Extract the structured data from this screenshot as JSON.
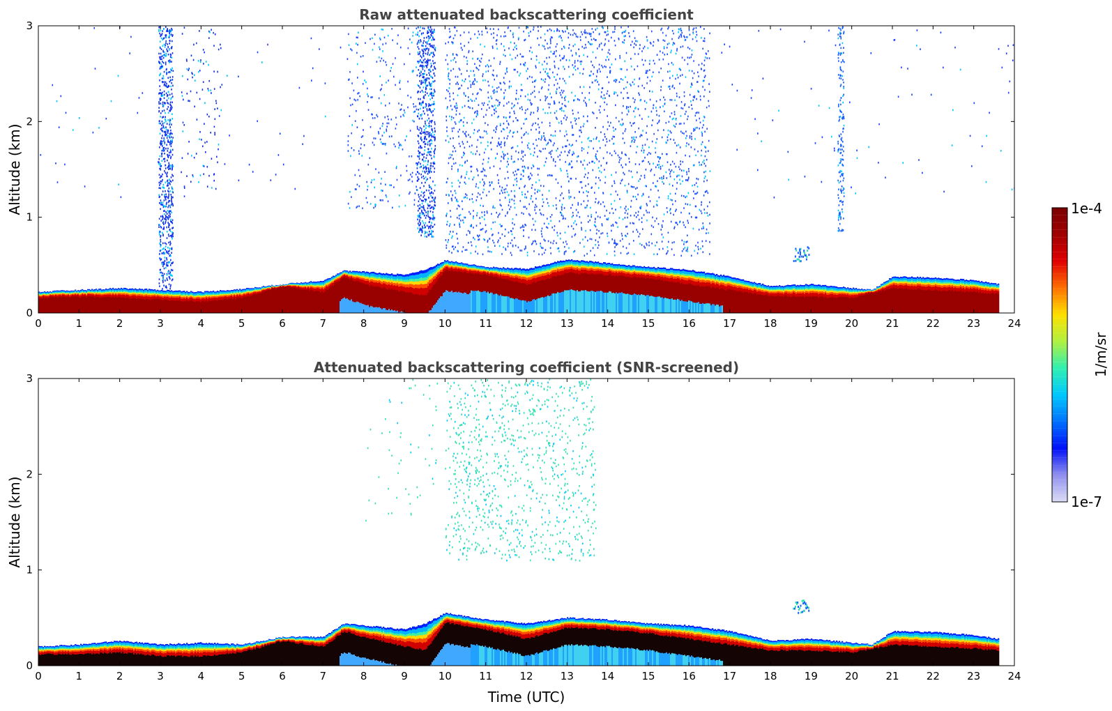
{
  "chart_data": [
    {
      "type": "heatmap",
      "title": "Raw attenuated backscattering coefficient",
      "xlabel": "",
      "ylabel": "Altitude (km)",
      "xlim": [
        0,
        24
      ],
      "ylim": [
        0,
        3
      ],
      "xticks": [
        0,
        1,
        2,
        3,
        4,
        5,
        6,
        7,
        8,
        9,
        10,
        11,
        12,
        13,
        14,
        15,
        16,
        17,
        18,
        19,
        20,
        21,
        22,
        23,
        24
      ],
      "yticks": [
        0,
        1,
        2,
        3
      ],
      "layer_top_km": {
        "x": [
          0,
          1,
          2,
          3,
          4,
          5,
          6,
          7,
          7.5,
          8,
          9,
          9.5,
          10,
          11,
          12,
          13,
          14,
          15,
          16,
          17,
          18,
          19,
          20,
          20.5,
          21,
          22,
          23,
          23.6
        ],
        "y": [
          0.22,
          0.24,
          0.26,
          0.24,
          0.22,
          0.25,
          0.3,
          0.34,
          0.44,
          0.43,
          0.4,
          0.45,
          0.55,
          0.48,
          0.46,
          0.56,
          0.52,
          0.48,
          0.45,
          0.38,
          0.28,
          0.3,
          0.26,
          0.24,
          0.38,
          0.37,
          0.34,
          0.3
        ]
      },
      "dense_layer_top_km": {
        "x": [
          0,
          1,
          2,
          3,
          4,
          5,
          6,
          7,
          7.5,
          8,
          9,
          9.5,
          10,
          11,
          12,
          13,
          14,
          15,
          16,
          17,
          18,
          19,
          20,
          21,
          22,
          23,
          23.6
        ],
        "y": [
          0.16,
          0.17,
          0.16,
          0.14,
          0.12,
          0.16,
          0.28,
          0.22,
          0.38,
          0.3,
          0.22,
          0.18,
          0.45,
          0.4,
          0.3,
          0.42,
          0.4,
          0.36,
          0.3,
          0.24,
          0.18,
          0.17,
          0.16,
          0.26,
          0.24,
          0.22,
          0.2
        ]
      },
      "noise_regions": [
        {
          "x0": 2.95,
          "x1": 3.3,
          "ybottom": 0.25,
          "ytop": 3.0,
          "density": 0.55,
          "color": "#1030f0"
        },
        {
          "x0": 9.3,
          "x1": 9.75,
          "ybottom": 0.8,
          "ytop": 3.0,
          "density": 0.5,
          "color": "#1030f0"
        },
        {
          "x0": 10.0,
          "x1": 16.5,
          "ybottom": 0.6,
          "ytop": 3.0,
          "density": 0.12,
          "color": "#2050ff"
        },
        {
          "x0": 7.6,
          "x1": 9.3,
          "ybottom": 1.1,
          "ytop": 3.0,
          "density": 0.06,
          "color": "#2050ff"
        },
        {
          "x0": 3.5,
          "x1": 4.5,
          "ybottom": 1.3,
          "ytop": 3.0,
          "density": 0.05,
          "color": "#1030f0"
        },
        {
          "x0": 19.65,
          "x1": 19.8,
          "ybottom": 0.85,
          "ytop": 3.0,
          "density": 0.4,
          "color": "#1a60ff"
        },
        {
          "x0": 0,
          "x1": 24,
          "ybottom": 1.2,
          "ytop": 3.0,
          "density": 0.004,
          "color": "#1a40ff"
        }
      ]
    },
    {
      "type": "heatmap",
      "title": "Attenuated backscattering coefficient (SNR-screened)",
      "xlabel": "Time (UTC)",
      "ylabel": "Altitude (km)",
      "xlim": [
        0,
        24
      ],
      "ylim": [
        0,
        3
      ],
      "xticks": [
        0,
        1,
        2,
        3,
        4,
        5,
        6,
        7,
        8,
        9,
        10,
        11,
        12,
        13,
        14,
        15,
        16,
        17,
        18,
        19,
        20,
        21,
        22,
        23,
        24
      ],
      "yticks": [
        0,
        1,
        2,
        3
      ],
      "layer_top_km": {
        "x": [
          0,
          1,
          2,
          3,
          4,
          5,
          6,
          7,
          7.5,
          8,
          9,
          9.5,
          10,
          11,
          12,
          13,
          14,
          15,
          16,
          17,
          18,
          19,
          20,
          20.5,
          21,
          22,
          23,
          23.6
        ],
        "y": [
          0.2,
          0.22,
          0.26,
          0.22,
          0.24,
          0.22,
          0.3,
          0.3,
          0.44,
          0.42,
          0.38,
          0.44,
          0.55,
          0.48,
          0.44,
          0.5,
          0.48,
          0.44,
          0.42,
          0.36,
          0.26,
          0.28,
          0.24,
          0.22,
          0.36,
          0.35,
          0.32,
          0.28
        ]
      },
      "dense_layer_top_km": {
        "x": [
          0,
          1,
          2,
          3,
          4,
          5,
          6,
          7,
          7.5,
          8,
          9,
          9.5,
          10,
          11,
          12,
          13,
          14,
          15,
          16,
          17,
          18,
          19,
          20,
          21,
          22,
          23,
          23.6
        ],
        "y": [
          0.12,
          0.12,
          0.14,
          0.1,
          0.1,
          0.14,
          0.26,
          0.2,
          0.36,
          0.3,
          0.2,
          0.16,
          0.45,
          0.38,
          0.28,
          0.4,
          0.38,
          0.34,
          0.28,
          0.22,
          0.16,
          0.16,
          0.14,
          0.22,
          0.2,
          0.18,
          0.16
        ]
      },
      "noise_regions": [
        {
          "x0": 10.0,
          "x1": 13.7,
          "ybottom": 1.1,
          "ytop": 3.0,
          "density": 0.1,
          "color": "#30e0b0"
        },
        {
          "x0": 8.0,
          "x1": 9.8,
          "ybottom": 1.5,
          "ytop": 3.0,
          "density": 0.015,
          "color": "#30e0b0"
        }
      ]
    }
  ],
  "colorbar": {
    "min_label": "1e-7",
    "max_label": "1e-4",
    "unit_label": "1/m/sr",
    "scale": "log",
    "colors": [
      "#dcdcf6",
      "#9090ee",
      "#0010f8",
      "#0070ff",
      "#00c8ff",
      "#30f0b0",
      "#b0f040",
      "#ffe000",
      "#ff7000",
      "#e00000",
      "#a00000",
      "#7a0000"
    ]
  }
}
